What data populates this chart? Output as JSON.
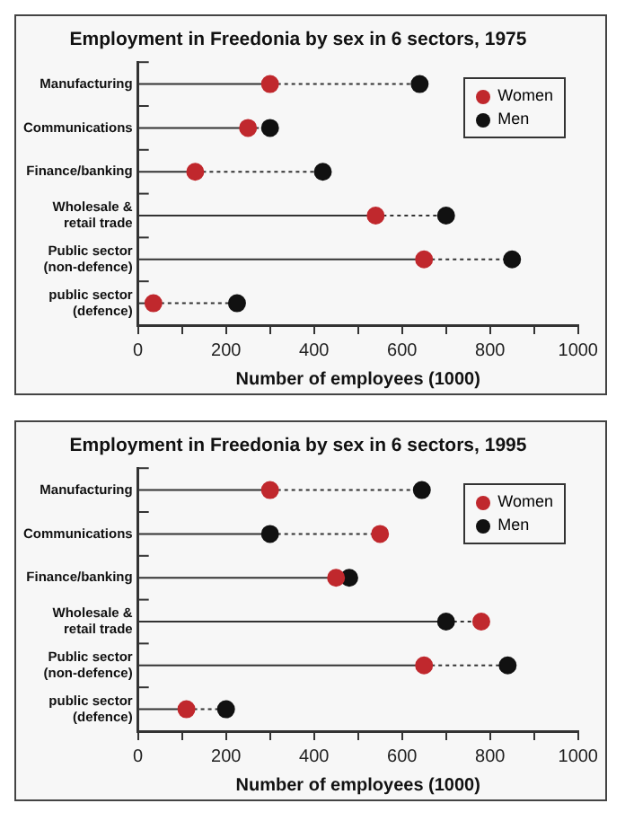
{
  "chart_data": [
    {
      "type": "scatter",
      "orientation": "horizontal",
      "title": "Employment in Freedonia by sex in 6 sectors, 1975",
      "xlabel": "Number of employees (1000)",
      "categories": [
        "Manufacturing",
        "Communications",
        "Finance/banking",
        "Wholesale & retail trade",
        "Public sector (non-defence)",
        "public sector (defence)"
      ],
      "series": [
        {
          "name": "Women",
          "color": "#c0282d",
          "values": [
            300,
            250,
            130,
            540,
            650,
            35
          ]
        },
        {
          "name": "Men",
          "color": "#111111",
          "values": [
            640,
            300,
            420,
            700,
            850,
            225
          ]
        }
      ],
      "xlim": [
        0,
        1000
      ],
      "xticks": [
        0,
        {
          "value": 100,
          "label": null
        },
        200,
        {
          "value": 300,
          "label": null
        },
        400,
        {
          "value": 500,
          "label": null
        },
        600,
        {
          "value": 700,
          "label": null
        },
        800,
        {
          "value": 900,
          "label": null
        },
        1000
      ],
      "grid": false,
      "legend": "top right",
      "marker": "circle"
    },
    {
      "type": "scatter",
      "orientation": "horizontal",
      "title": "Employment in Freedonia by sex in 6 sectors, 1995",
      "xlabel": "Number of employees (1000)",
      "categories": [
        "Manufacturing",
        "Communications",
        "Finance/banking",
        "Wholesale & retail trade",
        "Public sector (non-defence)",
        "public sector (defence)"
      ],
      "series": [
        {
          "name": "Women",
          "color": "#c0282d",
          "values": [
            300,
            550,
            450,
            780,
            650,
            110
          ]
        },
        {
          "name": "Men",
          "color": "#111111",
          "values": [
            645,
            300,
            480,
            700,
            840,
            200
          ]
        }
      ],
      "xlim": [
        0,
        1000
      ],
      "xticks": [
        0,
        {
          "value": 100,
          "label": null
        },
        200,
        {
          "value": 300,
          "label": null
        },
        400,
        {
          "value": 500,
          "label": null
        },
        600,
        {
          "value": 700,
          "label": null
        },
        800,
        {
          "value": 900,
          "label": null
        },
        1000
      ],
      "grid": false,
      "legend": "top right",
      "marker": "circle"
    }
  ]
}
